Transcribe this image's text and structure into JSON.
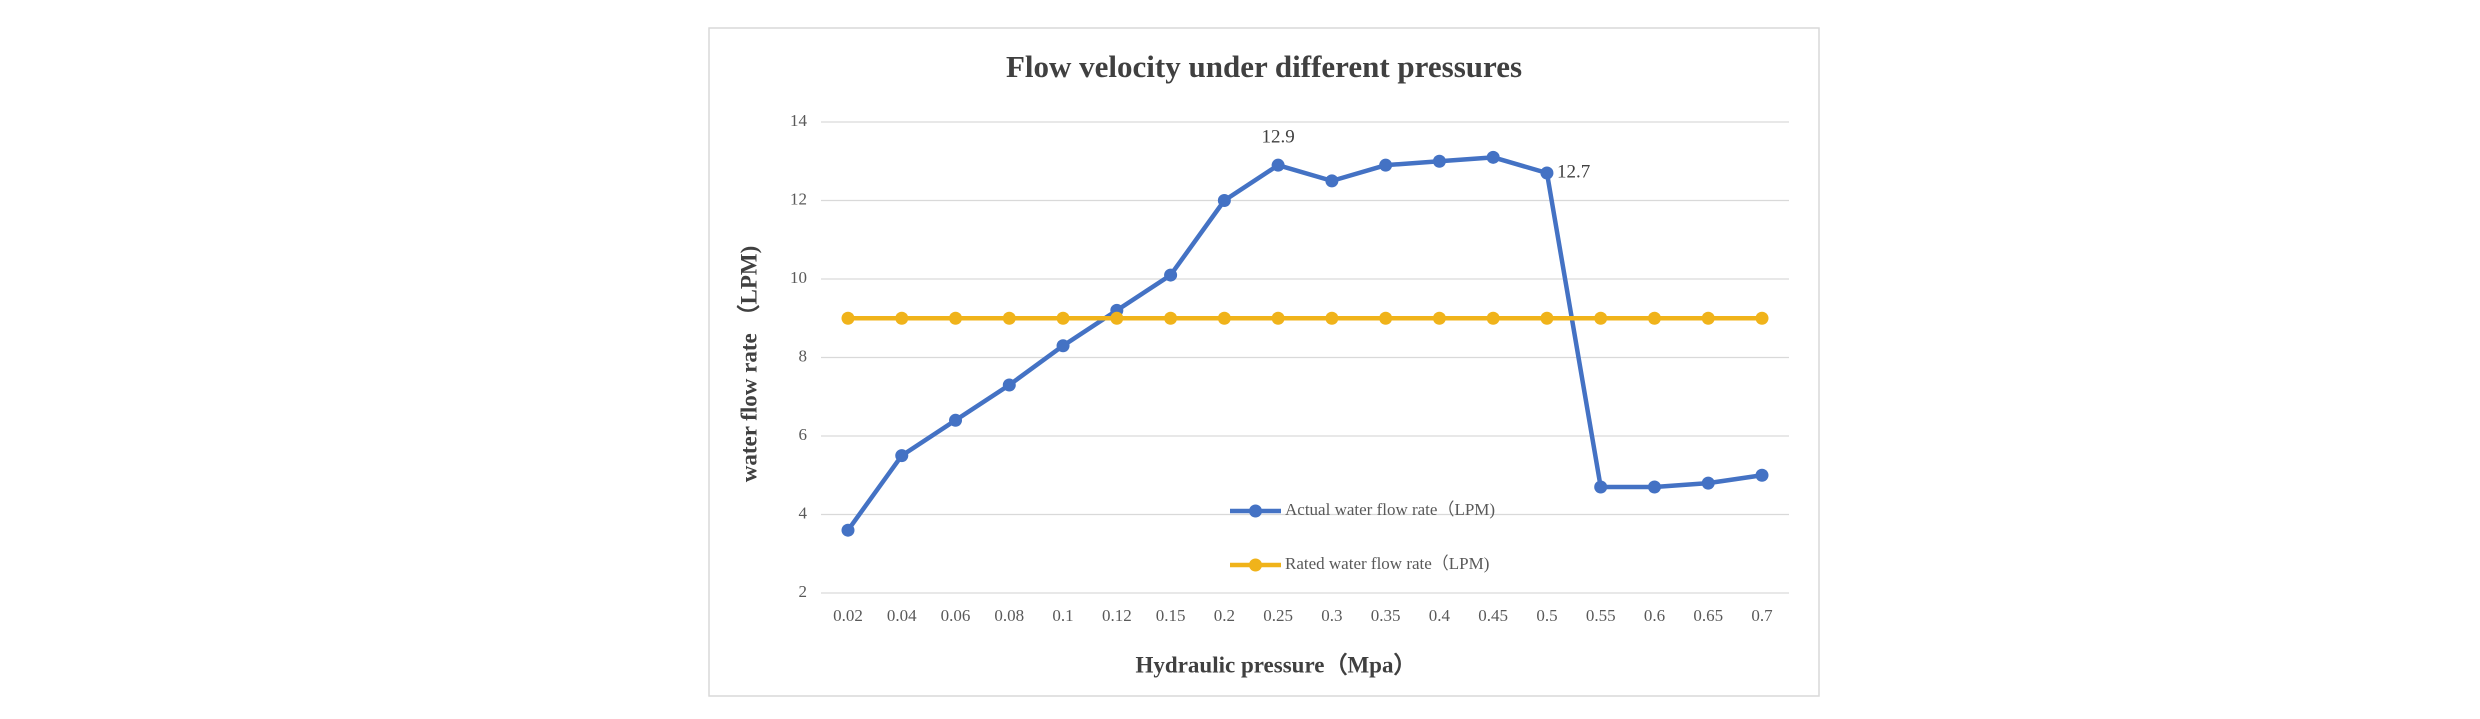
{
  "chart_data": {
    "type": "line",
    "title": "Flow velocity under different pressures",
    "x_label": "Hydraulic pressure（Mpa）",
    "y_label": "water flow rate （LPM)",
    "categories": [
      "0.02",
      "0.04",
      "0.06",
      "0.08",
      "0.1",
      "0.12",
      "0.15",
      "0.2",
      "0.25",
      "0.3",
      "0.35",
      "0.4",
      "0.45",
      "0.5",
      "0.55",
      "0.6",
      "0.65",
      "0.7"
    ],
    "series": [
      {
        "name": "Actual water flow rate（LPM)",
        "color": "#4472c4",
        "values": [
          3.6,
          5.5,
          6.4,
          7.3,
          8.3,
          9.2,
          10.1,
          12.0,
          12.9,
          12.5,
          12.9,
          13.0,
          13.1,
          12.7,
          4.7,
          4.7,
          4.8,
          5.0
        ],
        "value_labels": [
          null,
          null,
          null,
          null,
          null,
          null,
          null,
          null,
          "12.9",
          null,
          null,
          null,
          null,
          "12.7",
          null,
          null,
          null,
          null
        ]
      },
      {
        "name": "Rated water flow rate（LPM)",
        "color": "#f0b31a",
        "values": [
          9,
          9,
          9,
          9,
          9,
          9,
          9,
          9,
          9,
          9,
          9,
          9,
          9,
          9,
          9,
          9,
          9,
          9
        ]
      }
    ],
    "ylim": [
      2,
      14
    ],
    "yticks": [
      2,
      4,
      6,
      8,
      10,
      12,
      14
    ],
    "grid": true
  }
}
